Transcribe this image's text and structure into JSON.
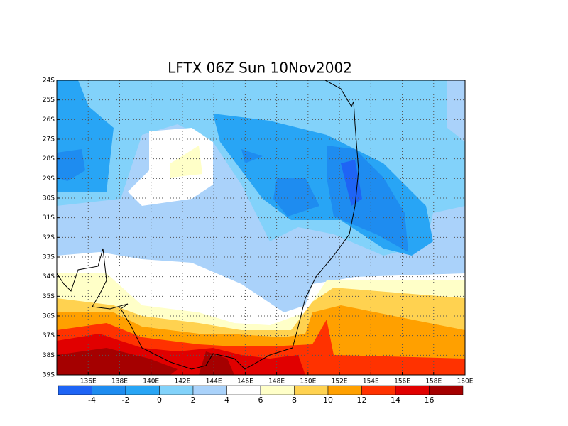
{
  "map": {
    "title": "LFTX 06Z Sun 10Nov2002",
    "lon_labels": [
      "136E",
      "138E",
      "140E",
      "142E",
      "144E",
      "146E",
      "148E",
      "150E",
      "152E",
      "154E",
      "156E",
      "158E",
      "160E"
    ],
    "lat_labels": [
      "24S",
      "25S",
      "26S",
      "27S",
      "28S",
      "29S",
      "30S",
      "31S",
      "32S",
      "33S",
      "34S",
      "35S",
      "36S",
      "37S",
      "38S",
      "39S"
    ],
    "colorbar": {
      "levels": [
        -4,
        -2,
        0,
        2,
        4,
        6,
        8,
        10,
        12,
        14,
        16
      ],
      "colors": [
        "#1e64f5",
        "#1e8cf0",
        "#28a5f5",
        "#82d2fa",
        "#aad2fa",
        "#ffffff",
        "#ffffc8",
        "#ffd250",
        "#ffa000",
        "#ff3200",
        "#e10000",
        "#a50000"
      ]
    }
  }
}
